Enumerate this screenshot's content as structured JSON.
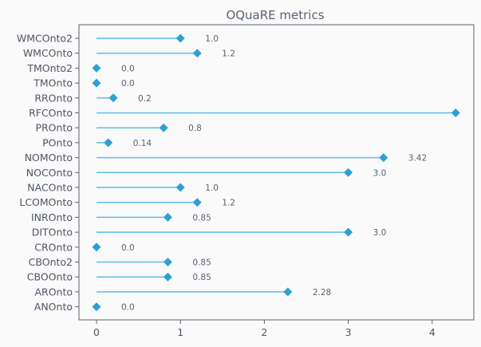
{
  "chart_data": {
    "type": "lollipop",
    "title": "OQuaRE metrics",
    "xlabel": "",
    "ylabel": "",
    "xlim": [
      -0.2,
      4.5
    ],
    "xticks": [
      0,
      1,
      2,
      3,
      4
    ],
    "grid": false,
    "colors": {
      "stem": "#5bbde9",
      "marker": "#2e9fd6",
      "background": "#fafafa"
    },
    "categories": [
      "WMCOnto2",
      "WMCOnto",
      "TMOnto2",
      "TMOnto",
      "RROnto",
      "RFCOnto",
      "PROnto",
      "POnto",
      "NOMOnto",
      "NOCOnto",
      "NACOnto",
      "LCOMOnto",
      "INROnto",
      "DITOnto",
      "CROnto",
      "CBOnto2",
      "CBOOnto",
      "AROnto",
      "ANOnto"
    ],
    "values": [
      1.0,
      1.2,
      0.0,
      0.0,
      0.2,
      4.28,
      0.8,
      0.14,
      3.42,
      3.0,
      1.0,
      1.2,
      0.85,
      3.0,
      0.0,
      0.85,
      0.85,
      2.28,
      0.0
    ],
    "value_labels": [
      "1.0",
      "1.2",
      "0.0",
      "0.0",
      "0.2",
      "",
      "0.8",
      "0.14",
      "3.42",
      "3.0",
      "1.0",
      "1.2",
      "0.85",
      "3.0",
      "0.0",
      "0.85",
      "0.85",
      "2.28",
      "0.0"
    ]
  }
}
